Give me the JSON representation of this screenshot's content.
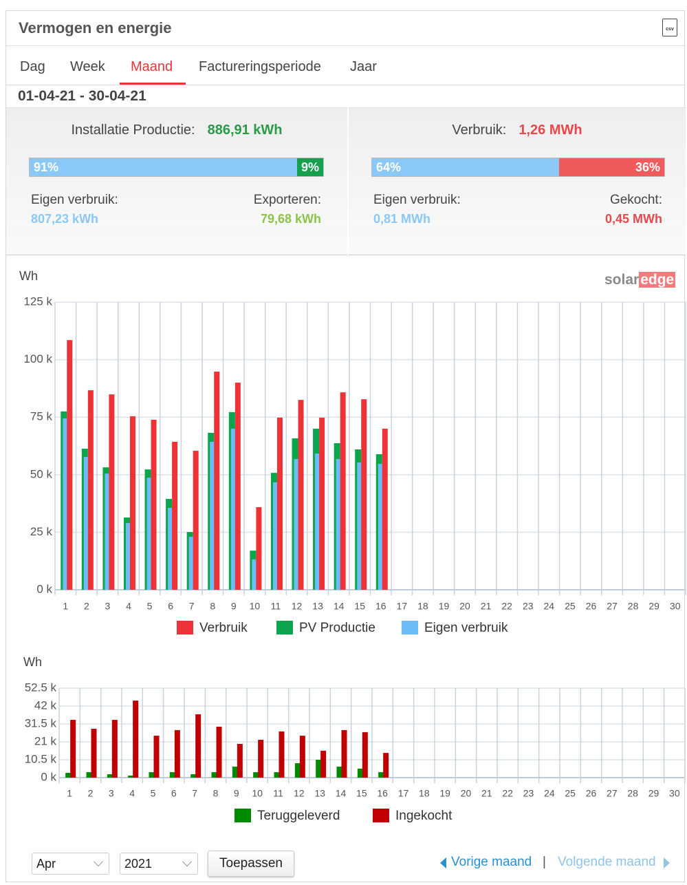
{
  "header": {
    "title": "Vermogen en energie",
    "icon": "csv"
  },
  "tabs": {
    "items": [
      "Dag",
      "Week",
      "Maand",
      "Factureringsperiode",
      "Jaar"
    ],
    "active": "Maand"
  },
  "date_range": "01-04-21 - 30-04-21",
  "summary": {
    "left": {
      "label": "Installatie Productie:",
      "value": "886,91 kWh",
      "bar": [
        {
          "value": 91,
          "label": "91%"
        },
        {
          "value": 9,
          "label": "9%"
        }
      ],
      "a_label": "Eigen verbruik:",
      "a_value": "807,23 kWh",
      "b_label": "Exporteren:",
      "b_value": "79,68 kWh"
    },
    "right": {
      "label": "Verbruik:",
      "value": "1,26 MWh",
      "bar": [
        {
          "value": 64,
          "label": "64%"
        },
        {
          "value": 36,
          "label": "36%"
        }
      ],
      "a_label": "Eigen verbruik:",
      "a_value": "0,81 MWh",
      "b_label": "Gekocht:",
      "b_value": "0,45 MWh"
    }
  },
  "logo": [
    "solar",
    "edge"
  ],
  "chart_data": [
    {
      "type": "bar",
      "y_label": "Wh",
      "categories": [
        "1",
        "2",
        "3",
        "4",
        "5",
        "6",
        "7",
        "8",
        "9",
        "10",
        "11",
        "12",
        "13",
        "14",
        "15",
        "16",
        "17",
        "18",
        "19",
        "20",
        "21",
        "22",
        "23",
        "24",
        "25",
        "26",
        "27",
        "28",
        "29",
        "30"
      ],
      "series": [
        {
          "name": "Verbruik",
          "color": "#ee3338",
          "values": [
            108500,
            86700,
            84900,
            75400,
            73900,
            64300,
            60400,
            94800,
            90000,
            35900,
            74800,
            82500,
            74800,
            85800,
            82800,
            70000,
            null,
            null,
            null,
            null,
            null,
            null,
            null,
            null,
            null,
            null,
            null,
            null,
            null,
            null
          ]
        },
        {
          "name": "PV Productie",
          "color": "#0aa54c",
          "values": [
            77500,
            61300,
            53200,
            31400,
            52300,
            39500,
            25100,
            68200,
            77200,
            17000,
            50800,
            65800,
            70000,
            63700,
            61000,
            58900,
            null,
            null,
            null,
            null,
            null,
            null,
            null,
            null,
            null,
            null,
            null,
            null,
            null,
            null
          ]
        },
        {
          "name": "Eigen verbruik",
          "color": "#6dbcf7",
          "values": [
            74500,
            57700,
            50500,
            29000,
            48700,
            35600,
            23000,
            64300,
            70000,
            13200,
            46700,
            56800,
            59200,
            56800,
            55300,
            54700,
            null,
            null,
            null,
            null,
            null,
            null,
            null,
            null,
            null,
            null,
            null,
            null,
            null,
            null
          ]
        }
      ],
      "ylim": [
        0,
        125000
      ],
      "yticks": [
        {
          "value": 0,
          "label": "0 k"
        },
        {
          "value": 25000,
          "label": "25 k"
        },
        {
          "value": 50000,
          "label": "50 k"
        },
        {
          "value": 75000,
          "label": "75 k"
        },
        {
          "value": 100000,
          "label": "100 k"
        },
        {
          "value": 125000,
          "label": "125 k"
        }
      ],
      "grid": true
    },
    {
      "type": "bar",
      "y_label": "Wh",
      "categories": [
        "1",
        "2",
        "3",
        "4",
        "5",
        "6",
        "7",
        "8",
        "9",
        "10",
        "11",
        "12",
        "13",
        "14",
        "15",
        "16",
        "17",
        "18",
        "19",
        "20",
        "21",
        "22",
        "23",
        "24",
        "25",
        "26",
        "27",
        "28",
        "29",
        "30"
      ],
      "series": [
        {
          "name": "Teruggeleverd",
          "color": "#008a00",
          "values": [
            2800,
            3200,
            2000,
            1200,
            3200,
            3200,
            2000,
            3200,
            6500,
            3200,
            3200,
            8500,
            10500,
            6500,
            5300,
            3200,
            null,
            null,
            null,
            null,
            null,
            null,
            null,
            null,
            null,
            null,
            null,
            null,
            null,
            null
          ]
        },
        {
          "name": "Ingekocht",
          "color": "#c00000",
          "values": [
            33900,
            28700,
            33900,
            45200,
            24600,
            27900,
            37200,
            29900,
            19800,
            22200,
            27100,
            24600,
            15800,
            27900,
            26700,
            14500,
            null,
            null,
            null,
            null,
            null,
            null,
            null,
            null,
            null,
            null,
            null,
            null,
            null,
            null
          ]
        }
      ],
      "ylim": [
        0,
        52500
      ],
      "yticks": [
        {
          "value": 0,
          "label": "0 k"
        },
        {
          "value": 10500,
          "label": "10.5 k"
        },
        {
          "value": 21000,
          "label": "21 k"
        },
        {
          "value": 31500,
          "label": "31.5 k"
        },
        {
          "value": 42000,
          "label": "42 k"
        },
        {
          "value": 52500,
          "label": "52.5 k"
        }
      ],
      "grid": true
    }
  ],
  "footer": {
    "month": "Apr",
    "year": "2021",
    "apply": "Toepassen",
    "prev": "Vorige maand",
    "sep": "|",
    "next": "Volgende maand"
  }
}
